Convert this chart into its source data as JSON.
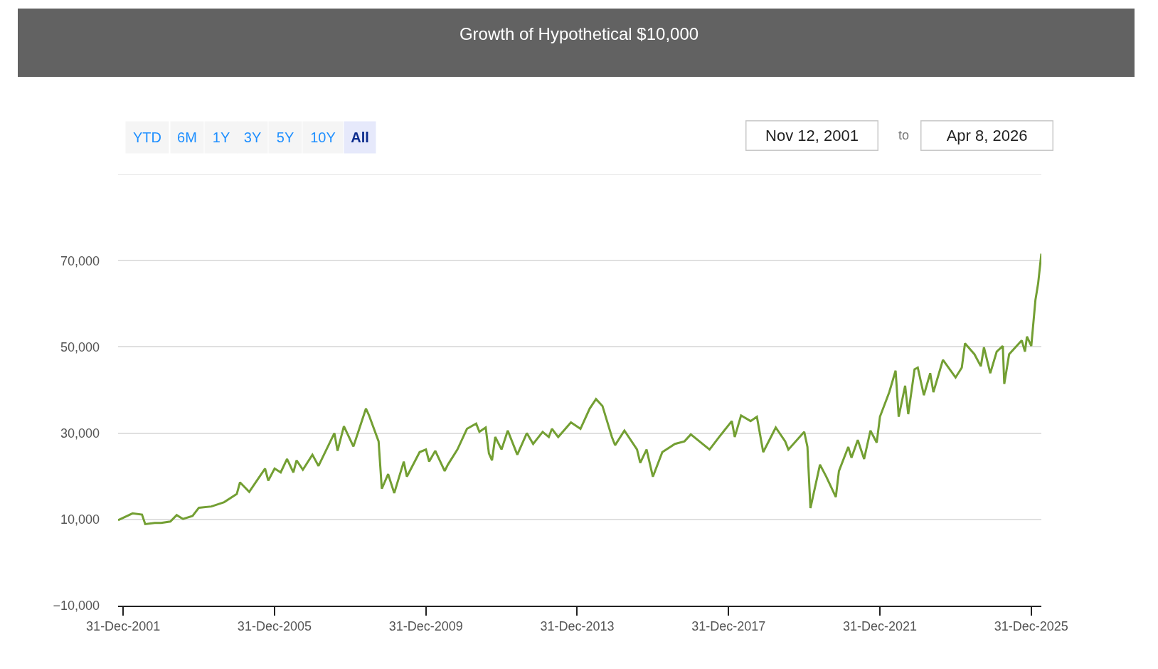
{
  "chart_data": {
    "type": "line",
    "title": "Growth of Hypothetical $10,000",
    "annotations": [
      "YTD",
      "6M",
      "1Y",
      "3Y",
      "5Y",
      "10Y",
      "All",
      "Nov 12, 2001",
      "to",
      "Apr 8, 2026"
    ],
    "x": [
      "2001-11-12",
      "2002-04",
      "2002-07",
      "2002-08",
      "2002-11",
      "2003-01",
      "2003-04",
      "2003-06",
      "2003-08",
      "2003-11",
      "2004-01",
      "2004-05",
      "2004-09",
      "2005-01",
      "2005-02",
      "2005-05",
      "2005-10",
      "2005-11",
      "2006-01",
      "2006-03",
      "2006-05",
      "2006-07",
      "2006-08",
      "2006-10",
      "2007-01",
      "2007-03",
      "2007-08",
      "2007-09",
      "2007-11",
      "2008-02",
      "2008-06",
      "2008-07",
      "2008-10",
      "2008-11",
      "2009-01",
      "2009-03",
      "2009-06",
      "2009-07",
      "2009-11",
      "2010-01",
      "2010-02",
      "2010-04",
      "2010-07",
      "2010-08",
      "2010-11",
      "2011-02",
      "2011-05",
      "2011-06",
      "2011-08",
      "2011-09",
      "2011-10",
      "2011-11",
      "2012-01",
      "2012-03",
      "2012-06",
      "2012-09",
      "2012-11",
      "2013-02",
      "2013-04",
      "2013-05",
      "2013-07",
      "2013-11",
      "2014-02",
      "2014-05",
      "2014-07",
      "2014-09",
      "2014-12",
      "2015-01",
      "2015-04",
      "2015-08",
      "2015-09",
      "2015-11",
      "2016-01",
      "2016-04",
      "2016-08",
      "2016-11",
      "2017-01",
      "2017-07",
      "2017-10",
      "2018-02",
      "2018-03",
      "2018-05",
      "2018-08",
      "2018-10",
      "2018-12",
      "2019-04",
      "2019-07",
      "2019-08",
      "2020-01",
      "2020-02",
      "2020-03",
      "2020-06",
      "2020-08",
      "2020-11",
      "2020-12",
      "2021-03",
      "2021-04",
      "2021-06",
      "2021-08",
      "2021-10",
      "2021-12",
      "2022-01",
      "2022-04",
      "2022-06",
      "2022-07",
      "2022-09",
      "2022-10",
      "2022-12",
      "2023-01",
      "2023-03",
      "2023-05",
      "2023-06",
      "2023-09",
      "2024-01",
      "2024-03",
      "2024-04",
      "2024-07",
      "2024-09",
      "2024-10",
      "2024-12",
      "2025-02",
      "2025-04",
      "2025-04-15",
      "2025-06",
      "2025-10",
      "2025-11",
      "2025-11-20",
      "2026-01-01",
      "2026-02-10",
      "2026-03-08",
      "2026-04-08"
    ],
    "series": [
      {
        "color": "#739f33",
        "values": [
          9800,
          11400,
          11100,
          8900,
          9200,
          9200,
          9500,
          11000,
          10100,
          10800,
          12700,
          13000,
          14000,
          15900,
          18600,
          16400,
          21800,
          19000,
          21800,
          20900,
          24000,
          20900,
          23700,
          21500,
          25000,
          22400,
          30000,
          25900,
          31600,
          26900,
          35700,
          34100,
          28100,
          17100,
          20500,
          16100,
          23400,
          19900,
          25600,
          26200,
          23400,
          25900,
          21200,
          22700,
          26200,
          31000,
          32200,
          30300,
          31300,
          25300,
          23700,
          29100,
          26200,
          30600,
          25000,
          30000,
          27500,
          30300,
          29100,
          31000,
          29100,
          32500,
          31000,
          35700,
          37900,
          36300,
          29100,
          27200,
          30600,
          26200,
          23100,
          26200,
          19900,
          25600,
          27500,
          28100,
          29700,
          26200,
          29100,
          32800,
          29100,
          34100,
          32800,
          33800,
          25600,
          31300,
          28100,
          26200,
          30300,
          26800,
          12600,
          22700,
          19900,
          15200,
          21200,
          26800,
          24300,
          28400,
          24000,
          30600,
          27800,
          33800,
          39500,
          44500,
          33800,
          41000,
          34400,
          44800,
          45200,
          38800,
          43900,
          39500,
          47000,
          42900,
          45200,
          50800,
          48300,
          45500,
          49900,
          43900,
          48900,
          50200,
          41400,
          48300,
          51500,
          48900,
          52400,
          50200,
          60900,
          64700,
          71600
        ]
      }
    ],
    "xlim": [
      "2001-11-12",
      "2026-04-08"
    ],
    "xticks": [
      {
        "value": "2001-12-31",
        "label": "31-Dec-2001"
      },
      {
        "value": "2005-12-31",
        "label": "31-Dec-2005"
      },
      {
        "value": "2009-12-31",
        "label": "31-Dec-2009"
      },
      {
        "value": "2013-12-31",
        "label": "31-Dec-2013"
      },
      {
        "value": "2017-12-31",
        "label": "31-Dec-2017"
      },
      {
        "value": "2021-12-31",
        "label": "31-Dec-2021"
      },
      {
        "value": "2025-12-31",
        "label": "31-Dec-2025"
      }
    ],
    "ylim": [
      -10000,
      90000
    ],
    "yticks": [
      {
        "value": -10000,
        "label": "−10,000"
      },
      {
        "value": 10000,
        "label": "10,000"
      },
      {
        "value": 30000,
        "label": "30,000"
      },
      {
        "value": 50000,
        "label": "50,000"
      },
      {
        "value": 70000,
        "label": "70,000"
      },
      {
        "value": 90000,
        "label": null
      }
    ],
    "grid": "y",
    "marker": "none",
    "line_style": "solid"
  }
}
